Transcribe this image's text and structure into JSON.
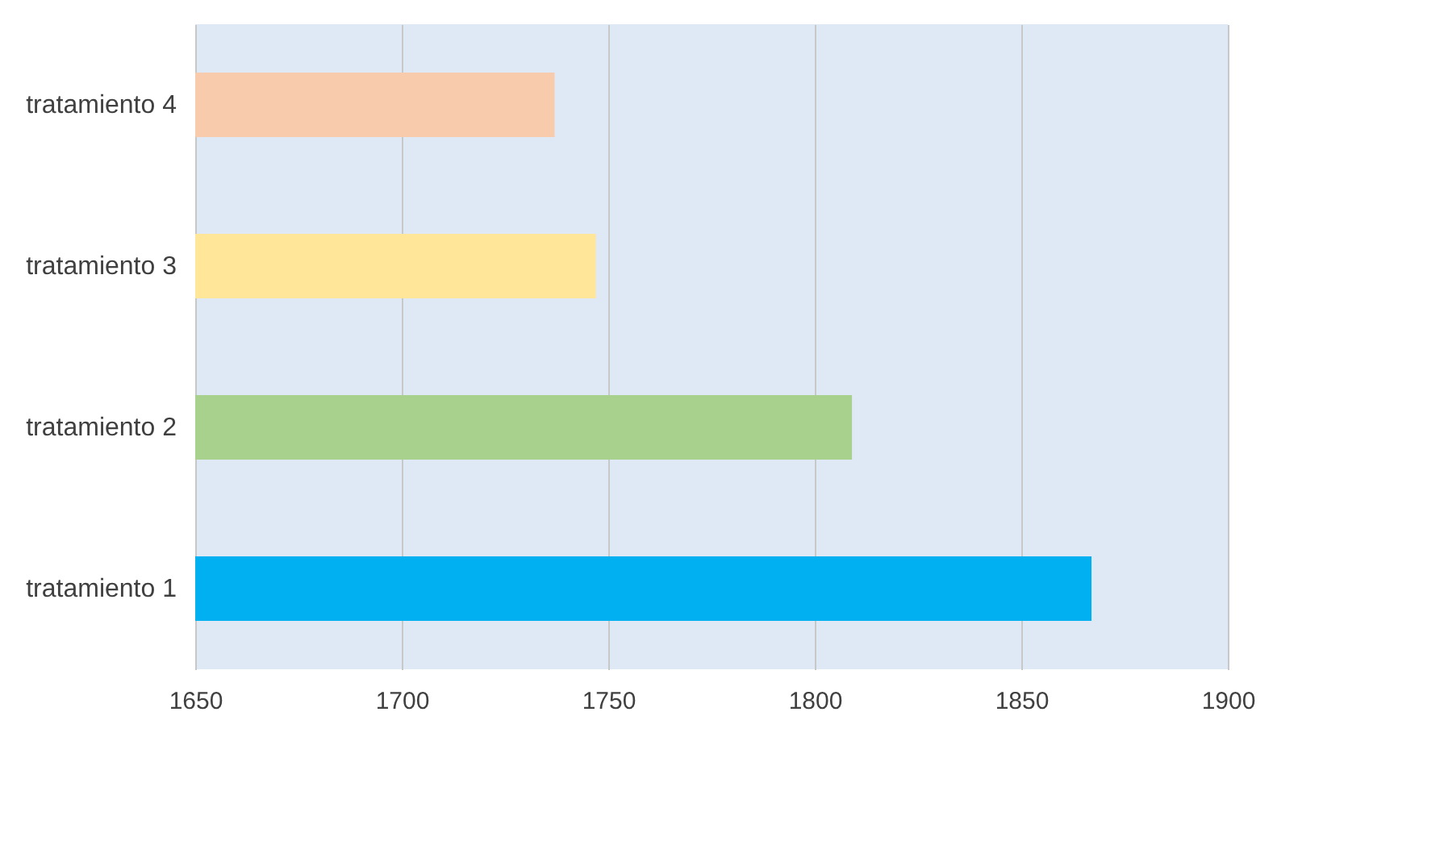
{
  "chart_data": {
    "type": "bar",
    "orientation": "horizontal",
    "categories": [
      "tratamiento 4",
      "tratamiento 3",
      "tratamiento 2",
      "tratamiento 1"
    ],
    "values": [
      1737,
      1747,
      1809,
      1867
    ],
    "colors": [
      "#f8cbad",
      "#ffe699",
      "#a9d18e",
      "#00b0f0"
    ],
    "xlim": [
      1650,
      1900
    ],
    "xticks": [
      1650,
      1700,
      1750,
      1800,
      1850,
      1900
    ],
    "grid": "x"
  }
}
